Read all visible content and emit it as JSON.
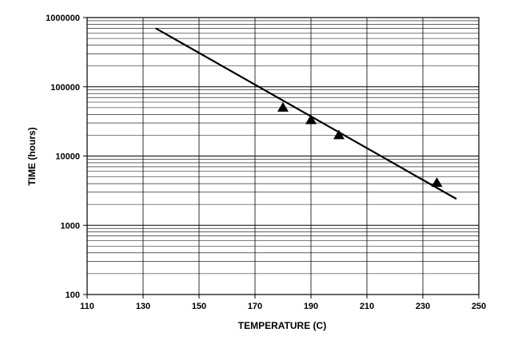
{
  "chart_data": {
    "type": "scatter",
    "title": "",
    "xlabel": "TEMPERATURE (C)",
    "ylabel": "TIME (hours)",
    "xlim": [
      110,
      250
    ],
    "ylim": [
      100,
      1000000
    ],
    "yscale": "log",
    "grid": true,
    "x_ticks": [
      110,
      130,
      150,
      170,
      190,
      210,
      230,
      250
    ],
    "x_tick_labels": [
      "110",
      "130",
      "150",
      "170",
      "190",
      "210",
      "230",
      "250"
    ],
    "y_ticks": [
      100,
      1000,
      10000,
      100000,
      1000000
    ],
    "y_tick_labels": [
      "100",
      "1000",
      "10000",
      "100000",
      "1000000"
    ],
    "series": [
      {
        "kind": "line",
        "color": "#000000",
        "x": [
          134.5,
          242
        ],
        "y": [
          700000,
          2400
        ]
      },
      {
        "kind": "points",
        "marker": "triangle",
        "color": "#000000",
        "x": [
          180,
          190,
          200,
          235
        ],
        "y": [
          50000,
          33000,
          20000,
          4100
        ]
      }
    ]
  }
}
